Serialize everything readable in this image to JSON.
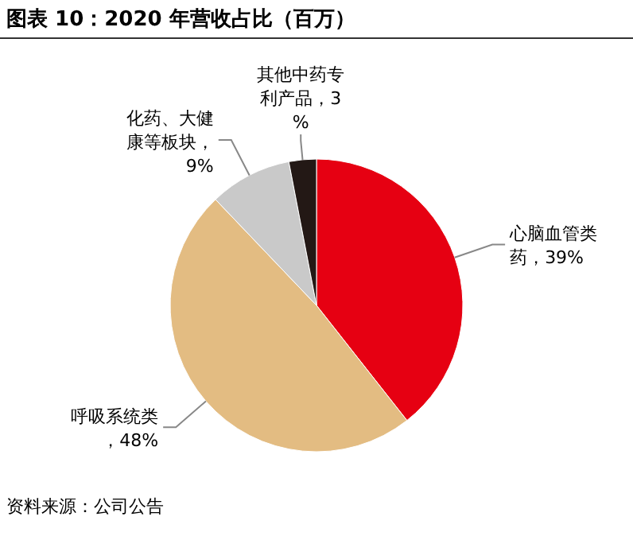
{
  "chart_data": {
    "type": "pie",
    "title": "图表 10：2020 年营收占比（百万）",
    "categories": [
      "心脑血管类药",
      "呼吸系统类",
      "化药、大健康等板块",
      "其他中药专利产品"
    ],
    "values": [
      39,
      48,
      9,
      3
    ],
    "value_labels": [
      "，39%",
      "，48%",
      "，9%",
      "，3%"
    ],
    "colors": [
      "#e60012",
      "#e3bc82",
      "#c9c9c9",
      "#231815"
    ],
    "annotations": [
      "资料来源：公司公告"
    ]
  }
}
